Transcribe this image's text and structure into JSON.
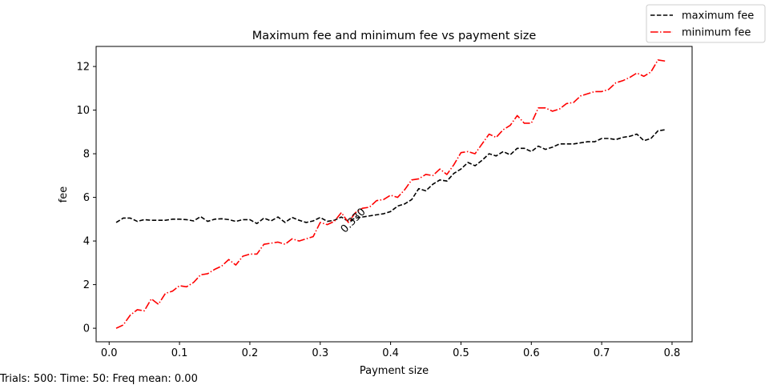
{
  "chart_data": {
    "type": "line",
    "title": "Maximum fee and minimum fee vs payment size",
    "xlabel": "Payment size",
    "ylabel": "fee",
    "xlim": [
      -0.0185,
      0.8285
    ],
    "ylim": [
      -0.62,
      12.92
    ],
    "xticks": [
      "0.0",
      "0.1",
      "0.2",
      "0.3",
      "0.4",
      "0.5",
      "0.6",
      "0.7",
      "0.8"
    ],
    "yticks": [
      "0",
      "2",
      "4",
      "6",
      "8",
      "10",
      "12"
    ],
    "legend_position": "top-right",
    "grid": false,
    "x": [
      0.01,
      0.02,
      0.03,
      0.04,
      0.05,
      0.06,
      0.07,
      0.08,
      0.09,
      0.1,
      0.11,
      0.12,
      0.13,
      0.14,
      0.15,
      0.16,
      0.17,
      0.18,
      0.19,
      0.2,
      0.21,
      0.22,
      0.23,
      0.24,
      0.25,
      0.26,
      0.27,
      0.28,
      0.29,
      0.3,
      0.31,
      0.32,
      0.33,
      0.34,
      0.35,
      0.36,
      0.37,
      0.38,
      0.39,
      0.4,
      0.41,
      0.42,
      0.43,
      0.44,
      0.45,
      0.46,
      0.47,
      0.48,
      0.49,
      0.5,
      0.51,
      0.52,
      0.53,
      0.54,
      0.55,
      0.56,
      0.57,
      0.58,
      0.59,
      0.6,
      0.61,
      0.62,
      0.63,
      0.64,
      0.65,
      0.66,
      0.67,
      0.68,
      0.69,
      0.7,
      0.71,
      0.72,
      0.73,
      0.74,
      0.75,
      0.76,
      0.77,
      0.78,
      0.79
    ],
    "series": [
      {
        "name": "maximum fee",
        "color": "#000000",
        "dash": "dashed",
        "values": [
          4.85,
          5.05,
          5.05,
          4.9,
          4.98,
          4.95,
          4.95,
          4.95,
          5.0,
          5.0,
          4.98,
          4.92,
          5.12,
          4.9,
          5.0,
          5.02,
          4.98,
          4.9,
          4.98,
          4.98,
          4.8,
          5.05,
          4.92,
          5.1,
          4.85,
          5.08,
          4.95,
          4.85,
          4.92,
          5.08,
          4.9,
          4.95,
          5.1,
          4.9,
          5.05,
          5.1,
          5.15,
          5.2,
          5.25,
          5.35,
          5.6,
          5.7,
          5.9,
          6.4,
          6.3,
          6.6,
          6.8,
          6.75,
          7.1,
          7.3,
          7.6,
          7.45,
          7.7,
          8.0,
          7.9,
          8.1,
          7.95,
          8.25,
          8.25,
          8.1,
          8.35,
          8.2,
          8.3,
          8.45,
          8.45,
          8.45,
          8.5,
          8.55,
          8.55,
          8.7,
          8.7,
          8.65,
          8.75,
          8.8,
          8.9,
          8.6,
          8.7,
          9.05,
          9.1
        ]
      },
      {
        "name": "minimum fee",
        "color": "#ff0000",
        "dash": "dashdot",
        "values": [
          0.0,
          0.15,
          0.6,
          0.85,
          0.8,
          1.35,
          1.1,
          1.6,
          1.7,
          1.95,
          1.9,
          2.1,
          2.45,
          2.5,
          2.7,
          2.85,
          3.15,
          2.9,
          3.3,
          3.4,
          3.4,
          3.85,
          3.9,
          3.95,
          3.85,
          4.1,
          4.0,
          4.1,
          4.2,
          4.85,
          4.75,
          4.9,
          5.3,
          4.85,
          5.3,
          5.5,
          5.55,
          5.85,
          5.9,
          6.1,
          6.0,
          6.35,
          6.8,
          6.85,
          7.05,
          7.0,
          7.3,
          7.05,
          7.5,
          8.05,
          8.1,
          8.0,
          8.45,
          8.9,
          8.75,
          9.1,
          9.3,
          9.75,
          9.4,
          9.4,
          10.1,
          10.1,
          9.95,
          10.05,
          10.3,
          10.35,
          10.65,
          10.75,
          10.85,
          10.85,
          10.95,
          11.25,
          11.35,
          11.5,
          11.7,
          11.55,
          11.75,
          12.3,
          12.25
        ]
      }
    ],
    "annotations": [
      {
        "text": "0.330",
        "x": 0.335,
        "y": 4.35,
        "rotation": -45
      }
    ]
  },
  "footer": {
    "text": "Trials: 500: Time: 50: Freq mean: 0.00"
  }
}
